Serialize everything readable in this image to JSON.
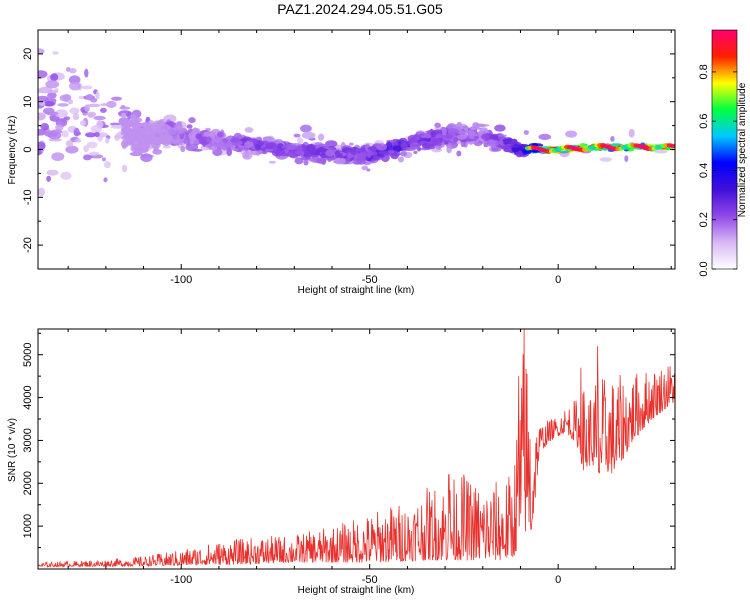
{
  "title": "PAZ1.2024.294.05.51.G05",
  "chart_data": [
    {
      "type": "heatmap",
      "xlabel": "Height of straight line (km)",
      "ylabel": "Frequency (Hz)",
      "xlim": [
        -138,
        31
      ],
      "ylim": [
        -25,
        25
      ],
      "xticks": [
        -100,
        -50,
        0
      ],
      "xtick_labels": [
        "-100",
        "-50",
        "0"
      ],
      "yticks": [
        -20,
        -10,
        0,
        10,
        20
      ],
      "ytick_labels": [
        "-20",
        "-10",
        "0",
        "10",
        "20"
      ],
      "colorbar": {
        "label": "Normalized spectral amplitude",
        "range": [
          0,
          0.97
        ],
        "ticks": [
          0.0,
          0.2,
          0.4,
          0.6,
          0.8
        ],
        "tick_labels": [
          "0.0",
          "0.2",
          "0.4",
          "0.6",
          "0.8"
        ],
        "colors": [
          "#ffffff",
          "#d8b8f5",
          "#9048e8",
          "#4010d8",
          "#0000ff",
          "#00c8ff",
          "#00ff40",
          "#ffff00",
          "#ff2000",
          "#ff0070"
        ]
      },
      "ridge": {
        "x": [
          -138,
          -120,
          -110,
          -100,
          -90,
          -80,
          -70,
          -60,
          -50,
          -40,
          -30,
          -20,
          -10,
          0,
          10,
          20,
          31
        ],
        "center_freq": [
          8,
          5,
          3,
          3,
          2,
          1,
          0,
          -1,
          -1,
          1,
          3,
          3,
          0,
          0,
          0.5,
          0.5,
          0.5
        ],
        "spread_hz": [
          20,
          15,
          6,
          3,
          3,
          3,
          3,
          3,
          3,
          3,
          4,
          4,
          2,
          1,
          1,
          1,
          1
        ],
        "peak_amplitude": [
          0.05,
          0.08,
          0.12,
          0.2,
          0.22,
          0.25,
          0.25,
          0.25,
          0.28,
          0.3,
          0.25,
          0.2,
          0.35,
          0.95,
          0.9,
          0.85,
          0.8
        ]
      }
    },
    {
      "type": "line",
      "xlabel": "Height of straight line (km)",
      "ylabel": "SNR (10 * v/v)",
      "xlim": [
        -138,
        31
      ],
      "ylim": [
        0,
        5600
      ],
      "xticks": [
        -100,
        -50,
        0
      ],
      "xtick_labels": [
        "-100",
        "-50",
        "0"
      ],
      "yticks": [
        1000,
        2000,
        3000,
        4000,
        5000
      ],
      "ytick_labels": [
        "1000",
        "2000",
        "3000",
        "4000",
        "5000"
      ],
      "color": "#e8312c",
      "x": [
        -138,
        -130,
        -120,
        -110,
        -100,
        -90,
        -80,
        -70,
        -60,
        -50,
        -45,
        -40,
        -35,
        -30,
        -25,
        -20,
        -15,
        -12,
        -10,
        -9,
        -8,
        -7,
        -5,
        -2,
        0,
        2,
        5,
        7,
        9,
        10,
        12,
        15,
        20,
        25,
        31
      ],
      "y_low": [
        50,
        60,
        60,
        70,
        80,
        100,
        120,
        150,
        150,
        150,
        160,
        180,
        200,
        200,
        200,
        200,
        200,
        250,
        600,
        800,
        900,
        700,
        2700,
        3000,
        3100,
        3200,
        2900,
        2200,
        2500,
        1800,
        2300,
        2200,
        3000,
        3500,
        3900
      ],
      "y_high": [
        150,
        180,
        220,
        300,
        450,
        650,
        750,
        800,
        1000,
        1300,
        1500,
        1600,
        1900,
        2100,
        2200,
        2000,
        2100,
        2300,
        4500,
        5600,
        5000,
        3600,
        3400,
        3500,
        3600,
        3800,
        4000,
        4300,
        4200,
        4600,
        4500,
        4500,
        4600,
        4700,
        4900
      ],
      "spikes": [
        {
          "x": -9.0,
          "y": 5600
        },
        {
          "x": 10.5,
          "y": 5200
        },
        {
          "x": 6.0,
          "y": 4700
        },
        {
          "x": -10.5,
          "y": 4500
        },
        {
          "x": -29.0,
          "y": 2200
        },
        {
          "x": -25.0,
          "y": 2200
        }
      ]
    }
  ]
}
